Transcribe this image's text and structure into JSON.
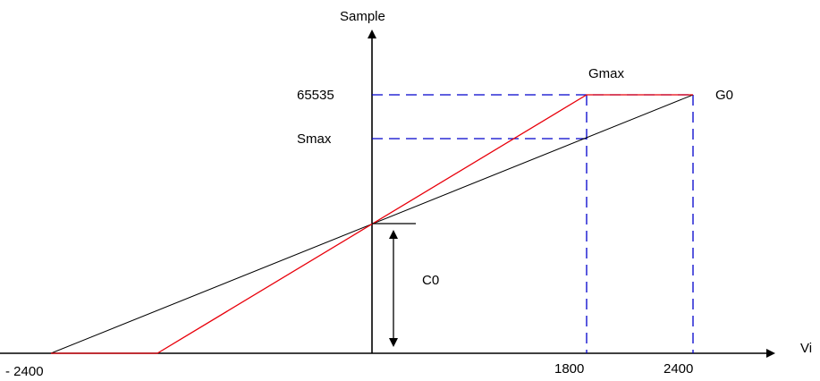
{
  "axes": {
    "y_axis_label": "Sample",
    "x_axis_label": "Vi"
  },
  "labels": {
    "y_65535": "65535",
    "y_smax": "Smax",
    "x_neg2400": "- 2400",
    "x_1800": "1800",
    "x_2400": "2400",
    "gmax": "Gmax",
    "g0": "G0",
    "c0": "C0"
  },
  "colors": {
    "axis": "#000000",
    "red_curve": "#e8000b",
    "black_line": "#000000",
    "guide_dashes": "#0000cc"
  },
  "icons": {
    "arrow_head": "arrow-icon"
  }
}
